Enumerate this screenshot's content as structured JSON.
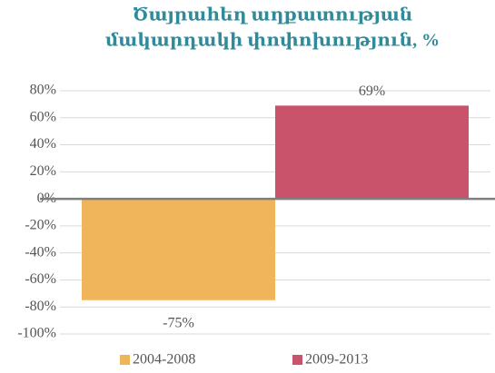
{
  "chart_data": {
    "type": "bar",
    "title": [
      "Ծայրահեղ աղքատության",
      "մակարդակի փոփոխություն, %"
    ],
    "categories": [
      null
    ],
    "series": [
      {
        "name": "2004-2008",
        "color": "#f0b55a",
        "values": [
          -75
        ],
        "value_labels": [
          "-75%"
        ]
      },
      {
        "name": "2009-2013",
        "color": "#c9536a",
        "values": [
          69
        ],
        "value_labels": [
          "69%"
        ]
      }
    ],
    "ylim": [
      -100,
      80
    ],
    "yticks": [
      {
        "value": -100,
        "label": "-100%"
      },
      {
        "value": -80,
        "label": "-80%"
      },
      {
        "value": -60,
        "label": "-60%"
      },
      {
        "value": -40,
        "label": "-40%"
      },
      {
        "value": -20,
        "label": "-20%"
      },
      {
        "value": 0,
        "label": "0%"
      },
      {
        "value": 20,
        "label": "20%"
      },
      {
        "value": 40,
        "label": "40%"
      },
      {
        "value": 60,
        "label": "60%"
      },
      {
        "value": 80,
        "label": "80%"
      }
    ],
    "grid": true
  }
}
